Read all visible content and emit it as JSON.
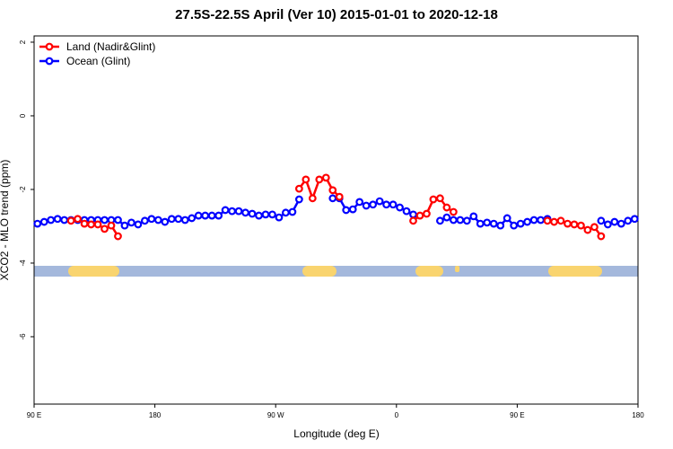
{
  "chart_data": {
    "type": "line",
    "title": "27.5S-22.5S April (Ver 10)   2015-01-01 to 2020-12-18",
    "x_label": "Longitude (deg E)",
    "y_label": "XCO2 - MLO trend (ppm)",
    "xlim": [
      90,
      540
    ],
    "xticks": [
      {
        "value": 90,
        "label": "90 E"
      },
      180,
      {
        "value": 270,
        "label": "90 W"
      },
      {
        "value": 360,
        "label": "0"
      },
      {
        "value": 450,
        "label": "90 E"
      },
      {
        "value": 540,
        "label": "180"
      }
    ],
    "ylim": [
      2.17,
      -7.83
    ],
    "yticks": [
      2,
      0,
      -2,
      -4,
      -6
    ],
    "legend": "top-left",
    "x": [
      92.5,
      97.5,
      102.5,
      107.5,
      112.5,
      117.5,
      122.5,
      127.5,
      132.5,
      137.5,
      142.5,
      147.5,
      152.5,
      157.5,
      162.5,
      167.5,
      172.5,
      177.5,
      182.5,
      187.5,
      192.5,
      197.5,
      202.5,
      207.5,
      212.5,
      217.5,
      222.5,
      227.5,
      232.5,
      237.5,
      242.5,
      247.5,
      252.5,
      257.5,
      262.5,
      267.5,
      272.5,
      277.5,
      282.5,
      287.5,
      292.5,
      297.5,
      302.5,
      307.5,
      312.5,
      317.5,
      322.5,
      327.5,
      332.5,
      337.5,
      342.5,
      347.5,
      352.5,
      357.5,
      362.5,
      367.5,
      372.5,
      377.5,
      382.5,
      387.5,
      392.5,
      397.5,
      402.5,
      407.5,
      412.5,
      417.5,
      422.5,
      427.5,
      432.5,
      437.5,
      442.5,
      447.5,
      452.5,
      457.5,
      462.5,
      467.5,
      472.5,
      477.5,
      482.5,
      487.5,
      492.5,
      497.5,
      502.5,
      507.5,
      512.5,
      517.5,
      522.5,
      527.5,
      532.5,
      537.5
    ],
    "series": [
      {
        "name": "Ocean (Glint)",
        "color": "#0000ff",
        "values": [
          -2.93,
          -2.88,
          -2.83,
          -2.8,
          -2.83,
          -2.83,
          -2.83,
          -2.83,
          -2.83,
          -2.83,
          -2.83,
          -2.83,
          -2.83,
          -2.98,
          -2.9,
          -2.95,
          -2.85,
          -2.8,
          -2.83,
          -2.88,
          -2.8,
          -2.8,
          -2.83,
          -2.78,
          -2.71,
          -2.71,
          -2.71,
          -2.71,
          -2.56,
          -2.59,
          -2.59,
          -2.63,
          -2.66,
          -2.71,
          -2.68,
          -2.68,
          -2.76,
          -2.63,
          -2.61,
          -2.27,
          null,
          null,
          null,
          null,
          -2.24,
          -2.24,
          -2.56,
          -2.54,
          -2.34,
          -2.44,
          -2.41,
          -2.32,
          -2.41,
          -2.41,
          -2.49,
          -2.59,
          -2.68,
          null,
          null,
          null,
          -2.85,
          -2.76,
          -2.83,
          -2.83,
          -2.85,
          -2.73,
          -2.93,
          -2.9,
          -2.93,
          -2.98,
          -2.78,
          -2.98,
          -2.93,
          -2.88,
          -2.83,
          -2.83,
          -2.8,
          null,
          null,
          null,
          null,
          null,
          null,
          null,
          -2.85,
          -2.95,
          -2.88,
          -2.93,
          -2.85,
          -2.8
        ]
      },
      {
        "name": "Land (Nadir&Glint)",
        "color": "#ff0000",
        "values": [
          null,
          null,
          null,
          null,
          null,
          -2.85,
          -2.8,
          -2.93,
          -2.95,
          -2.95,
          -3.07,
          -2.98,
          -3.27,
          null,
          null,
          null,
          null,
          null,
          null,
          null,
          null,
          null,
          null,
          null,
          null,
          null,
          null,
          null,
          null,
          null,
          null,
          null,
          null,
          null,
          null,
          null,
          null,
          null,
          null,
          -1.98,
          -1.73,
          -2.24,
          -1.73,
          -1.68,
          -2.02,
          -2.2,
          null,
          null,
          null,
          null,
          null,
          null,
          null,
          null,
          null,
          null,
          -2.85,
          -2.71,
          -2.66,
          -2.27,
          -2.24,
          -2.49,
          -2.61,
          null,
          null,
          null,
          null,
          null,
          null,
          null,
          null,
          null,
          null,
          null,
          null,
          null,
          -2.85,
          -2.88,
          -2.85,
          -2.93,
          -2.95,
          -2.98,
          -3.1,
          -3.02,
          -3.27,
          null,
          null,
          null,
          null,
          null
        ]
      }
    ]
  }
}
